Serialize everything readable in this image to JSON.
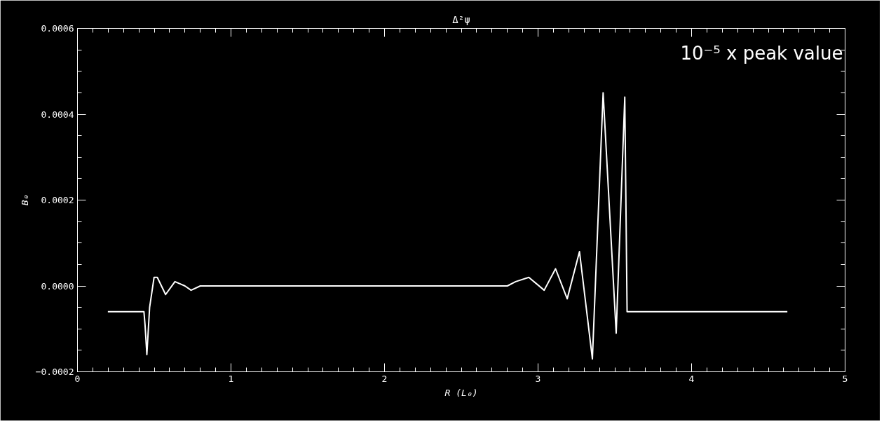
{
  "chart_data": {
    "type": "line",
    "title": "Δ²ψ",
    "xlabel": "R (L₀)",
    "ylabel": "B₀",
    "annotations": [
      "10⁻⁵ x peak value"
    ],
    "x": [
      0.198,
      0.433,
      0.44,
      0.452,
      0.47,
      0.499,
      0.52,
      0.574,
      0.635,
      0.7,
      0.74,
      0.8,
      0.9,
      2.8,
      2.854,
      2.94,
      3.04,
      3.114,
      3.19,
      3.27,
      3.354,
      3.424,
      3.509,
      3.565,
      3.58,
      4.624
    ],
    "series": [
      {
        "color": "#ffffff",
        "values": [
          -6e-05,
          -6e-05,
          -9e-05,
          -0.00016,
          -5e-05,
          2e-05,
          2e-05,
          -2e-05,
          1e-05,
          0.0,
          -1e-05,
          0.0,
          0.0,
          0.0,
          1e-05,
          2e-05,
          -1e-05,
          4e-05,
          -3e-05,
          8e-05,
          -0.00017,
          0.00045,
          -0.00011,
          0.00044,
          -6e-05,
          -6e-05
        ]
      }
    ],
    "xlim": [
      0,
      5
    ],
    "ylim": [
      -0.0002,
      0.0006
    ],
    "xticks": [
      0,
      1,
      2,
      3,
      4,
      5
    ],
    "yticks": [
      {
        "value": -0.0002,
        "label": "−0.0002"
      },
      {
        "value": 0,
        "label": "0.0000"
      },
      {
        "value": 0.0002,
        "label": "0.0002"
      },
      {
        "value": 0.0004,
        "label": "0.0004"
      },
      {
        "value": 0.0006,
        "label": "0.0006"
      }
    ],
    "grid": false,
    "marker": "none",
    "line_style": "solid"
  }
}
